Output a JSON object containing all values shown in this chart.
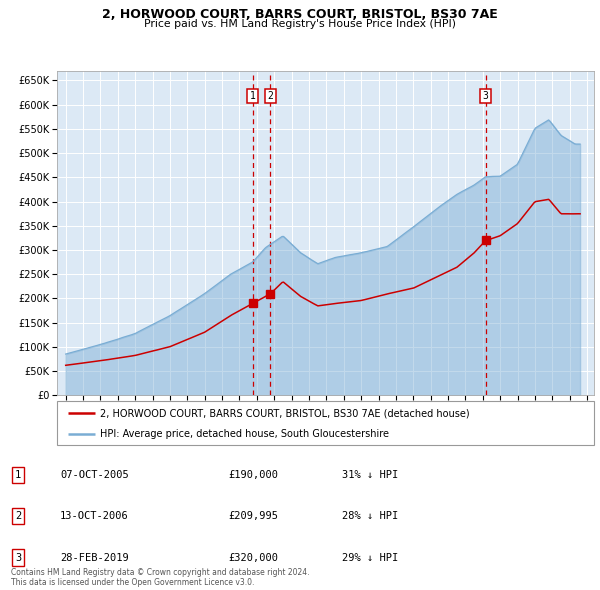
{
  "title_line1": "2, HORWOOD COURT, BARRS COURT, BRISTOL, BS30 7AE",
  "title_line2": "Price paid vs. HM Land Registry's House Price Index (HPI)",
  "background_color": "#ffffff",
  "plot_bg_color": "#dce9f5",
  "grid_color": "#ffffff",
  "hpi_color": "#7aadd4",
  "hpi_fill_alpha": 0.45,
  "price_color": "#cc0000",
  "vline_color": "#cc0000",
  "sale_events": [
    {
      "label": "1",
      "date_x": 2005.77,
      "price": 190000
    },
    {
      "label": "2",
      "date_x": 2006.78,
      "price": 209995
    },
    {
      "label": "3",
      "date_x": 2019.16,
      "price": 320000
    }
  ],
  "legend_line1": "2, HORWOOD COURT, BARRS COURT, BRISTOL, BS30 7AE (detached house)",
  "legend_line2": "HPI: Average price, detached house, South Gloucestershire",
  "table_rows": [
    {
      "num": "1",
      "date": "07-OCT-2005",
      "price": "£190,000",
      "hpi": "31% ↓ HPI"
    },
    {
      "num": "2",
      "date": "13-OCT-2006",
      "price": "£209,995",
      "hpi": "28% ↓ HPI"
    },
    {
      "num": "3",
      "date": "28-FEB-2019",
      "price": "£320,000",
      "hpi": "29% ↓ HPI"
    }
  ],
  "footer": "Contains HM Land Registry data © Crown copyright and database right 2024.\nThis data is licensed under the Open Government Licence v3.0.",
  "ylim": [
    0,
    670000
  ],
  "yticks": [
    0,
    50000,
    100000,
    150000,
    200000,
    250000,
    300000,
    350000,
    400000,
    450000,
    500000,
    550000,
    600000,
    650000
  ],
  "xlim_left": 1994.5,
  "xlim_right": 2025.4
}
